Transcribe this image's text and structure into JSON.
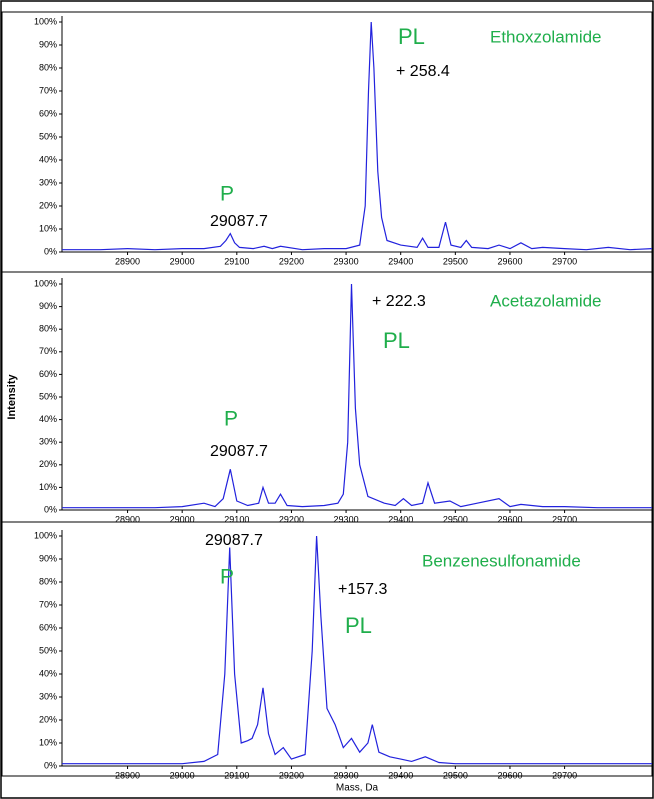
{
  "chart_data": [
    {
      "type": "line",
      "title": "Ethoxzolamide",
      "annotations": [
        "P",
        "29087.7",
        "PL",
        "+ 258.4"
      ],
      "xlim": [
        28780,
        29860
      ],
      "xticks": [
        28900,
        29000,
        29100,
        29200,
        29300,
        29400,
        29500,
        29600,
        29700
      ],
      "ylim": [
        0,
        100
      ],
      "yticks": [
        {
          "value": 0,
          "label": "0%"
        },
        {
          "value": 10,
          "label": "10%"
        },
        {
          "value": 20,
          "label": "20%"
        },
        {
          "value": 30,
          "label": "30%"
        },
        {
          "value": 40,
          "label": "40%"
        },
        {
          "value": 50,
          "label": "50%"
        },
        {
          "value": 60,
          "label": "60%"
        },
        {
          "value": 70,
          "label": "70%"
        },
        {
          "value": 80,
          "label": "80%"
        },
        {
          "value": 90,
          "label": "90%"
        },
        {
          "value": 100,
          "label": "100%"
        }
      ],
      "color": "#2222dd",
      "x": [
        28780,
        28850,
        28900,
        28950,
        29000,
        29040,
        29070,
        29080,
        29088,
        29096,
        29105,
        29130,
        29150,
        29165,
        29180,
        29220,
        29260,
        29300,
        29325,
        29335,
        29341,
        29346,
        29351,
        29358,
        29365,
        29375,
        29400,
        29430,
        29440,
        29450,
        29470,
        29482,
        29492,
        29510,
        29520,
        29530,
        29560,
        29580,
        29600,
        29620,
        29640,
        29660,
        29700,
        29740,
        29780,
        29820,
        29860
      ],
      "values": [
        1,
        1,
        1.5,
        1,
        1.5,
        1.5,
        2.5,
        5,
        8,
        4,
        2,
        1.5,
        2.5,
        1.5,
        2.5,
        1,
        1.5,
        1.5,
        3,
        20,
        70,
        100,
        80,
        35,
        15,
        5,
        3,
        2,
        6,
        2,
        2,
        13,
        3,
        2,
        5,
        2,
        1.5,
        3,
        1.5,
        4,
        1.5,
        2,
        1.5,
        1,
        2,
        1,
        1.5
      ]
    },
    {
      "type": "line",
      "title": "Acetazolamide",
      "annotations": [
        "P",
        "29087.7",
        "PL",
        "+ 222.3"
      ],
      "ylabel": "Intensity",
      "xlim": [
        28780,
        29860
      ],
      "xticks": [
        28900,
        29000,
        29100,
        29200,
        29300,
        29400,
        29500,
        29600,
        29700
      ],
      "ylim": [
        0,
        100
      ],
      "yticks": [
        {
          "value": 0,
          "label": "0%"
        },
        {
          "value": 10,
          "label": "10%"
        },
        {
          "value": 20,
          "label": "20%"
        },
        {
          "value": 30,
          "label": "30%"
        },
        {
          "value": 40,
          "label": "40%"
        },
        {
          "value": 50,
          "label": "50%"
        },
        {
          "value": 60,
          "label": "60%"
        },
        {
          "value": 70,
          "label": "70%"
        },
        {
          "value": 80,
          "label": "80%"
        },
        {
          "value": 90,
          "label": "90%"
        },
        {
          "value": 100,
          "label": "100%"
        }
      ],
      "color": "#2222dd",
      "x": [
        28780,
        28850,
        28900,
        28950,
        29000,
        29040,
        29060,
        29075,
        29088,
        29100,
        29120,
        29140,
        29148,
        29158,
        29170,
        29180,
        29192,
        29220,
        29260,
        29285,
        29295,
        29303,
        29310,
        29317,
        29325,
        29340,
        29370,
        29390,
        29405,
        29420,
        29440,
        29450,
        29462,
        29490,
        29510,
        29540,
        29580,
        29600,
        29620,
        29660,
        29700,
        29760,
        29820,
        29860
      ],
      "values": [
        1,
        1,
        1,
        1,
        1.5,
        3,
        1.5,
        5,
        18,
        4,
        2,
        3,
        10,
        3,
        3,
        7,
        2,
        1.5,
        2,
        3,
        7,
        30,
        100,
        45,
        20,
        6,
        3,
        2,
        5,
        2,
        3,
        12,
        3,
        4,
        1.5,
        3,
        5,
        1.5,
        2.5,
        1.5,
        1.5,
        1,
        1,
        1
      ]
    },
    {
      "type": "line",
      "title": "Benzenesulfonamide",
      "annotations": [
        "P",
        "29087.7",
        "PL",
        "+157.3"
      ],
      "xlabel": "Mass, Da",
      "xlim": [
        28780,
        29860
      ],
      "xticks": [
        28900,
        29000,
        29100,
        29200,
        29300,
        29400,
        29500,
        29600,
        29700
      ],
      "ylim": [
        0,
        100
      ],
      "yticks": [
        {
          "value": 0,
          "label": "0%"
        },
        {
          "value": 10,
          "label": "10%"
        },
        {
          "value": 20,
          "label": "20%"
        },
        {
          "value": 30,
          "label": "30%"
        },
        {
          "value": 40,
          "label": "40%"
        },
        {
          "value": 50,
          "label": "50%"
        },
        {
          "value": 60,
          "label": "60%"
        },
        {
          "value": 70,
          "label": "70%"
        },
        {
          "value": 80,
          "label": "80%"
        },
        {
          "value": 90,
          "label": "90%"
        },
        {
          "value": 100,
          "label": "100%"
        }
      ],
      "color": "#2222dd",
      "x": [
        28780,
        28850,
        28900,
        28950,
        29000,
        29040,
        29065,
        29078,
        29087,
        29096,
        29108,
        29120,
        29128,
        29138,
        29148,
        29158,
        29170,
        29185,
        29200,
        29225,
        29238,
        29246,
        29254,
        29265,
        29280,
        29295,
        29310,
        29325,
        29340,
        29348,
        29360,
        29380,
        29400,
        29420,
        29445,
        29470,
        29500,
        29560,
        29620,
        29700,
        29780,
        29860
      ],
      "values": [
        1,
        1,
        1,
        1,
        1,
        2,
        5,
        40,
        95,
        40,
        10,
        11,
        12,
        18,
        34,
        14,
        5,
        8,
        3,
        5,
        50,
        100,
        65,
        25,
        18,
        8,
        12,
        6,
        10,
        18,
        6,
        4,
        3,
        2,
        4,
        1.5,
        1,
        1,
        1,
        1,
        1,
        1
      ]
    }
  ]
}
